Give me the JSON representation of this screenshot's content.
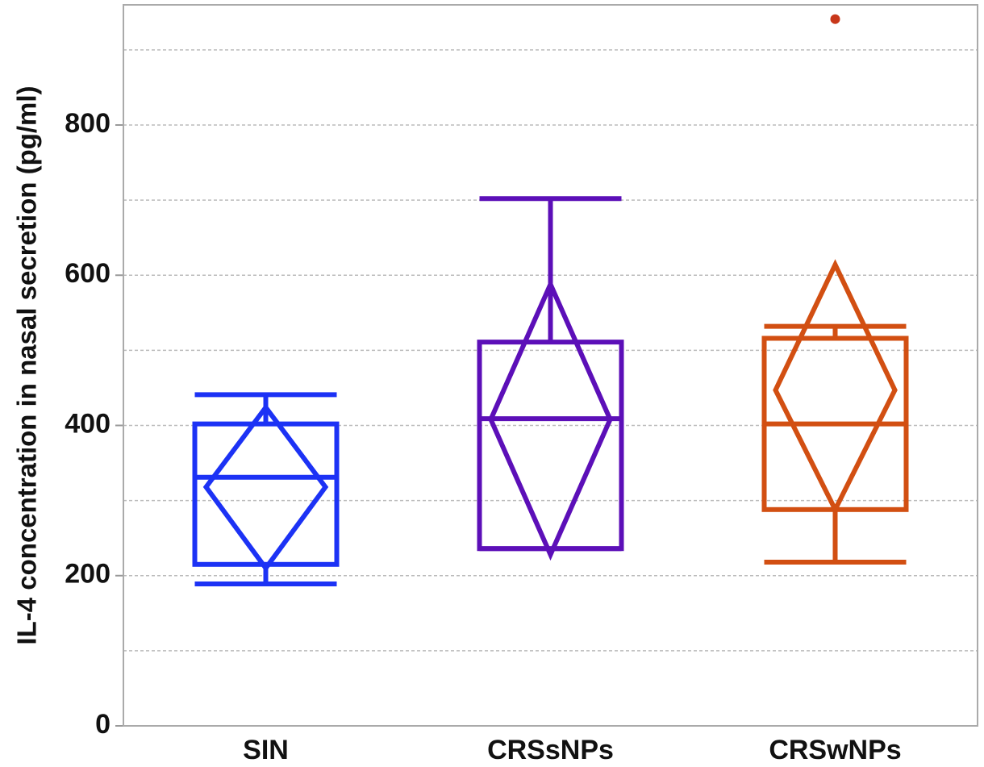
{
  "chart_data": {
    "type": "box",
    "y_label": "IL-4 concentration in nasal secretion (pg/ml)",
    "categories": [
      "SIN",
      "CRSsNPs",
      "CRSwNPs"
    ],
    "boxes": [
      {
        "color": "#1c32f5",
        "whisker_low": 189,
        "q1": 215,
        "median": 331,
        "q3": 402,
        "whisker_high": 441,
        "mean": 318,
        "ci_low": 210,
        "ci_high": 424,
        "outliers": []
      },
      {
        "color": "#5c0fb8",
        "whisker_low": 236,
        "q1": 236,
        "median": 409,
        "q3": 511,
        "whisker_high": 702,
        "mean": 408,
        "ci_low": 228,
        "ci_high": 588,
        "outliers": []
      },
      {
        "color": "#d24f12",
        "whisker_low": 218,
        "q1": 288,
        "median": 402,
        "q3": 516,
        "whisker_high": 532,
        "mean": 447,
        "ci_low": 288,
        "ci_high": 614,
        "outliers": [
          941
        ]
      }
    ],
    "outlier_color": "#c8371a",
    "ylim": [
      0,
      960
    ],
    "yticks": [
      0,
      200,
      400,
      600,
      800
    ],
    "grid_lines": [
      100,
      200,
      300,
      400,
      500,
      600,
      700,
      800,
      900
    ],
    "grid": true
  }
}
